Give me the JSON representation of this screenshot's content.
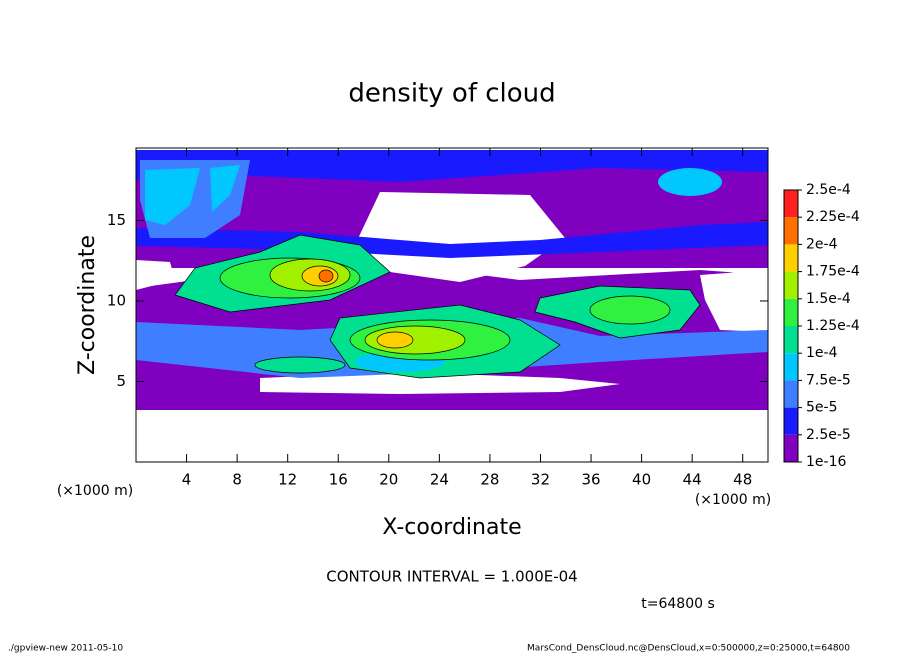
{
  "chart_data": {
    "type": "contour",
    "title": "density of cloud",
    "x_label": "X-coordinate",
    "y_label": "Z-coordinate",
    "x_unit": "(×1000 m)",
    "xlim": [
      0,
      50
    ],
    "ylim": [
      0,
      19.5
    ],
    "xticks": [
      4,
      8,
      12,
      16,
      20,
      24,
      28,
      32,
      36,
      40,
      44,
      48
    ],
    "yticks": [
      5,
      10,
      15
    ],
    "levels": [
      {
        "value": 1e-16,
        "label": "1e-16"
      },
      {
        "value": 2.5e-05,
        "label": "2.5e-5"
      },
      {
        "value": 5e-05,
        "label": "5e-5"
      },
      {
        "value": 7.5e-05,
        "label": "7.5e-5"
      },
      {
        "value": 0.0001,
        "label": "1e-4"
      },
      {
        "value": 0.000125,
        "label": "1.25e-4"
      },
      {
        "value": 0.00015,
        "label": "1.5e-4"
      },
      {
        "value": 0.000175,
        "label": "1.75e-4"
      },
      {
        "value": 0.0002,
        "label": "2e-4"
      },
      {
        "value": 0.000225,
        "label": "2.25e-4"
      },
      {
        "value": 0.00025,
        "label": "2.5e-4"
      }
    ],
    "colors": [
      "#8000c0",
      "#1a1aff",
      "#3f7fff",
      "#00c8ff",
      "#00e090",
      "#30f040",
      "#a0f000",
      "#ffd000",
      "#ff7000",
      "#ff2020"
    ],
    "annotation": "CONTOUR INTERVAL = 1.000E-04",
    "time_label": "t=64800 s",
    "footer_left": "./gpview-new  2011-05-10",
    "footer_right": "MarsCond_DensCloud.nc@DensCloud,x=0:500000,z=0:25000,t=64800"
  }
}
